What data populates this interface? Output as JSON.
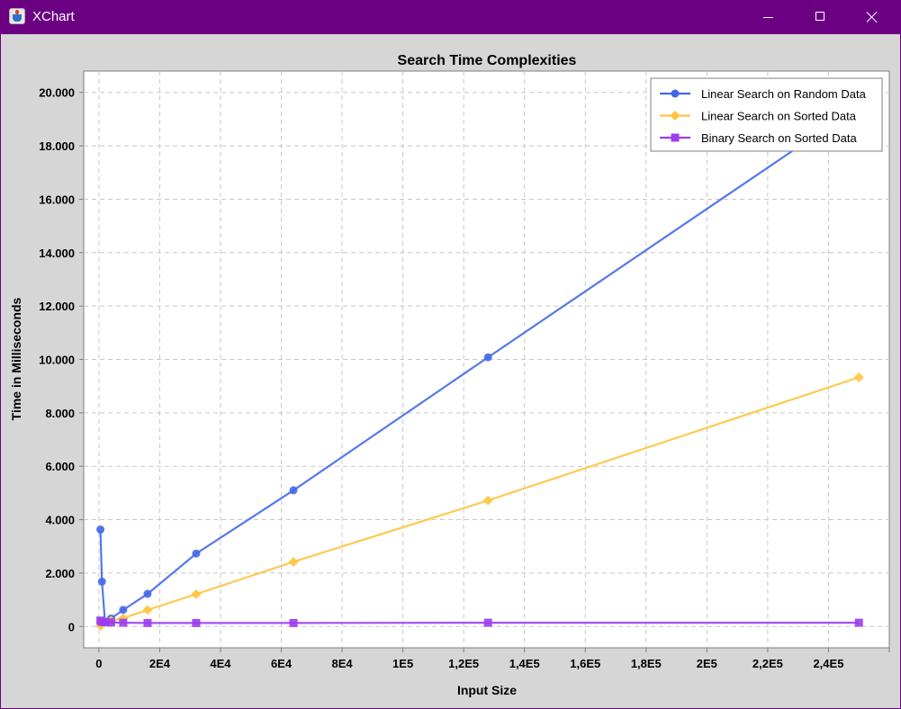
{
  "window": {
    "title": "XChart",
    "icon": "java-cup-icon",
    "controls": [
      "minimize-icon",
      "maximize-icon",
      "close-icon"
    ],
    "titlebar_color": "#6b0082"
  },
  "colors": {
    "background": "#d6d6d6",
    "plot_background": "#ffffff",
    "grid": "#c8c8c8",
    "series": [
      "#4169e8",
      "#ffc43d",
      "#9b3cf0"
    ]
  },
  "chart_data": {
    "type": "line",
    "title": "Search Time Complexities",
    "xlabel": "Input Size",
    "ylabel": "Time in Milliseconds",
    "xlim": [
      -5000,
      260000
    ],
    "ylim": [
      -800,
      20800
    ],
    "grid": true,
    "legend_position": "top-right",
    "x_ticks": [
      {
        "value": 0,
        "label": "0"
      },
      {
        "value": 20000,
        "label": "2E4"
      },
      {
        "value": 40000,
        "label": "4E4"
      },
      {
        "value": 60000,
        "label": "6E4"
      },
      {
        "value": 80000,
        "label": "8E4"
      },
      {
        "value": 100000,
        "label": "1E5"
      },
      {
        "value": 120000,
        "label": "1,2E5"
      },
      {
        "value": 140000,
        "label": "1,4E5"
      },
      {
        "value": 160000,
        "label": "1,6E5"
      },
      {
        "value": 180000,
        "label": "1,8E5"
      },
      {
        "value": 200000,
        "label": "2E5"
      },
      {
        "value": 220000,
        "label": "2,2E5"
      },
      {
        "value": 240000,
        "label": "2,4E5"
      }
    ],
    "y_ticks": [
      {
        "value": 0,
        "label": "0"
      },
      {
        "value": 2000,
        "label": "2.000"
      },
      {
        "value": 4000,
        "label": "4.000"
      },
      {
        "value": 6000,
        "label": "6.000"
      },
      {
        "value": 8000,
        "label": "8.000"
      },
      {
        "value": 10000,
        "label": "10.000"
      },
      {
        "value": 12000,
        "label": "12.000"
      },
      {
        "value": 14000,
        "label": "14.000"
      },
      {
        "value": 16000,
        "label": "16.000"
      },
      {
        "value": 18000,
        "label": "18.000"
      },
      {
        "value": 20000,
        "label": "20.000"
      }
    ],
    "series": [
      {
        "name": "Linear Search on Random Data",
        "color": "#4169e8",
        "marker": "circle",
        "x": [
          500,
          1000,
          2000,
          4000,
          8000,
          16000,
          32000,
          64000,
          128000,
          250000
        ],
        "y": [
          3630,
          1680,
          180,
          300,
          620,
          1220,
          2730,
          5100,
          10080,
          19500
        ]
      },
      {
        "name": "Linear Search on Sorted Data",
        "color": "#ffc43d",
        "marker": "diamond",
        "x": [
          500,
          1000,
          2000,
          4000,
          8000,
          16000,
          32000,
          64000,
          128000,
          250000
        ],
        "y": [
          30,
          110,
          150,
          220,
          310,
          620,
          1210,
          2420,
          4720,
          9330
        ]
      },
      {
        "name": "Binary Search on Sorted Data",
        "color": "#9b3cf0",
        "marker": "square",
        "x": [
          500,
          1000,
          2000,
          4000,
          8000,
          16000,
          32000,
          64000,
          128000,
          250000
        ],
        "y": [
          220,
          170,
          160,
          150,
          140,
          130,
          130,
          130,
          140,
          140
        ]
      }
    ]
  }
}
